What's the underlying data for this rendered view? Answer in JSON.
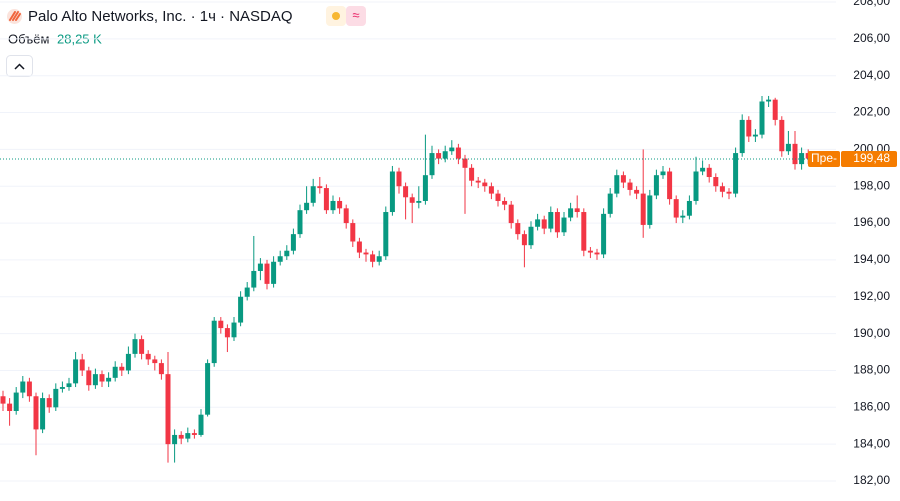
{
  "chart_data": {
    "type": "candlestick",
    "title": "Palo Alto Networks, Inc. · 1ч · NASDAQ",
    "volume_label": "Объём",
    "volume_value": "28,25 K",
    "up_color": "#089981",
    "down_color": "#f23645",
    "grid": true,
    "ylim": [
      182,
      208
    ],
    "yticks": [
      {
        "value": 182,
        "label": "182,00"
      },
      {
        "value": 184,
        "label": "184,00"
      },
      {
        "value": 186,
        "label": "186,00"
      },
      {
        "value": 188,
        "label": "188,00"
      },
      {
        "value": 190,
        "label": "190,00"
      },
      {
        "value": 192,
        "label": "192,00"
      },
      {
        "value": 194,
        "label": "194,00"
      },
      {
        "value": 196,
        "label": "196,00"
      },
      {
        "value": 198,
        "label": "198,00"
      },
      {
        "value": 200,
        "label": "200,00"
      },
      {
        "value": 202,
        "label": "202,00"
      },
      {
        "value": 204,
        "label": "204,00"
      },
      {
        "value": 206,
        "label": "206,00"
      },
      {
        "value": 208,
        "label": "208,00"
      }
    ],
    "premarket_label": "Пре-",
    "premarket_price": {
      "value": 199.48,
      "label": "199,48"
    },
    "open": [
      186.6,
      186.2,
      185.8,
      186.8,
      187.4,
      186.6,
      184.8,
      186.5,
      186.0,
      187.0,
      187.1,
      187.3,
      188.6,
      188.0,
      187.2,
      187.8,
      187.4,
      187.6,
      188.2,
      188.0,
      188.9,
      189.7,
      188.9,
      188.6,
      188.4,
      187.8,
      184.0,
      184.5,
      184.3,
      184.6,
      184.5,
      185.6,
      188.4,
      190.7,
      190.3,
      189.8,
      190.6,
      192.0,
      192.5,
      193.4,
      193.8,
      192.7,
      193.9,
      194.2,
      194.5,
      195.4,
      196.7,
      197.1,
      198.0,
      197.9,
      196.7,
      197.2,
      196.8,
      196.0,
      195.0,
      194.4,
      194.3,
      193.9,
      194.2,
      196.6,
      198.8,
      198.0,
      197.4,
      197.1,
      197.2,
      198.6,
      199.8,
      199.5,
      199.9,
      200.1,
      199.5,
      199.0,
      198.3,
      198.2,
      198.0,
      197.6,
      197.2,
      197.0,
      196.0,
      195.4,
      194.8,
      195.8,
      196.2,
      195.7,
      196.6,
      195.5,
      196.3,
      196.8,
      196.6,
      194.5,
      194.4,
      194.3,
      196.5,
      197.6,
      198.6,
      198.2,
      197.8,
      197.6,
      195.9,
      197.5,
      198.6,
      198.8,
      197.3,
      196.3,
      196.4,
      197.2,
      198.8,
      199.0,
      198.5,
      198.0,
      197.7,
      197.6,
      199.8,
      201.6,
      200.7,
      200.8,
      202.6,
      202.7,
      201.6,
      199.9,
      200.3,
      199.2,
      199.8
    ],
    "high": [
      186.9,
      186.5,
      187.1,
      187.7,
      187.6,
      186.8,
      186.8,
      186.7,
      187.3,
      187.4,
      187.6,
      189.0,
      188.9,
      188.2,
      188.1,
      188.0,
      187.9,
      188.5,
      188.4,
      189.3,
      190.0,
      189.9,
      189.1,
      188.8,
      188.6,
      189.0,
      184.8,
      184.7,
      184.9,
      184.8,
      185.9,
      188.6,
      190.9,
      190.9,
      190.5,
      190.9,
      192.3,
      192.8,
      195.3,
      194.1,
      194.0,
      194.2,
      194.5,
      194.8,
      195.7,
      197.0,
      198.0,
      198.4,
      198.5,
      198.1,
      197.5,
      197.4,
      197.0,
      196.2,
      195.2,
      194.6,
      194.5,
      194.5,
      196.9,
      199.1,
      199.0,
      198.2,
      197.6,
      198.0,
      200.8,
      200.2,
      200.0,
      200.2,
      200.5,
      200.3,
      199.7,
      199.2,
      198.5,
      198.4,
      198.2,
      197.8,
      197.4,
      197.2,
      196.2,
      195.6,
      196.1,
      196.5,
      196.4,
      196.9,
      196.8,
      196.6,
      197.1,
      197.5,
      196.8,
      194.7,
      194.6,
      196.8,
      197.9,
      198.9,
      198.8,
      198.4,
      198.0,
      200.0,
      197.8,
      198.9,
      199.1,
      199.0,
      197.5,
      196.7,
      197.5,
      199.6,
      199.4,
      199.2,
      198.7,
      198.2,
      197.9,
      200.1,
      201.9,
      201.8,
      201.1,
      202.9,
      202.9,
      202.8,
      201.8,
      201.0,
      201.0,
      200.1,
      200.0
    ],
    "low": [
      185.8,
      185.0,
      185.6,
      186.5,
      186.3,
      183.4,
      184.6,
      185.7,
      185.8,
      186.8,
      186.9,
      187.1,
      187.7,
      186.9,
      187.0,
      187.1,
      187.1,
      187.4,
      187.7,
      187.8,
      188.7,
      188.6,
      188.3,
      188.0,
      187.5,
      183.0,
      183.0,
      184.0,
      184.1,
      184.3,
      184.4,
      185.5,
      188.2,
      190.0,
      189.0,
      189.6,
      190.4,
      191.8,
      192.3,
      192.9,
      192.4,
      192.5,
      193.7,
      194.0,
      194.3,
      195.2,
      196.5,
      196.9,
      197.6,
      196.5,
      196.5,
      196.5,
      195.7,
      194.7,
      194.1,
      193.9,
      193.6,
      193.7,
      194.0,
      196.4,
      197.6,
      196.2,
      196.0,
      196.8,
      197.0,
      198.4,
      199.2,
      199.3,
      199.7,
      199.2,
      196.5,
      198.0,
      197.9,
      197.7,
      197.3,
      196.9,
      196.7,
      195.7,
      195.1,
      193.6,
      194.6,
      195.6,
      195.4,
      195.5,
      195.2,
      195.3,
      196.1,
      196.3,
      194.2,
      194.1,
      194.0,
      194.1,
      196.3,
      197.4,
      197.9,
      197.5,
      197.3,
      195.2,
      195.7,
      197.3,
      198.4,
      197.0,
      196.0,
      196.0,
      196.2,
      197.0,
      198.6,
      198.2,
      197.7,
      197.4,
      197.3,
      197.4,
      199.6,
      200.4,
      200.4,
      200.6,
      202.3,
      201.3,
      199.6,
      199.7,
      198.9,
      198.9,
      199.2
    ],
    "close": [
      186.2,
      185.8,
      186.8,
      187.4,
      186.6,
      184.8,
      186.5,
      186.0,
      187.0,
      187.1,
      187.3,
      188.6,
      188.0,
      187.2,
      187.8,
      187.4,
      187.6,
      188.2,
      188.0,
      188.9,
      189.7,
      188.9,
      188.6,
      188.4,
      187.8,
      184.0,
      184.5,
      184.3,
      184.6,
      184.5,
      185.6,
      188.4,
      190.7,
      190.3,
      189.8,
      190.6,
      192.0,
      192.5,
      193.4,
      193.8,
      192.7,
      193.9,
      194.2,
      194.5,
      195.4,
      196.7,
      197.1,
      198.0,
      197.9,
      196.7,
      197.2,
      196.8,
      196.0,
      195.0,
      194.4,
      194.3,
      193.9,
      194.2,
      196.6,
      198.8,
      198.0,
      197.4,
      197.1,
      197.2,
      198.6,
      199.8,
      199.5,
      199.9,
      200.1,
      199.5,
      199.0,
      198.3,
      198.2,
      198.0,
      197.6,
      197.2,
      197.0,
      196.0,
      195.4,
      194.8,
      195.8,
      196.2,
      195.7,
      196.6,
      195.5,
      196.3,
      196.8,
      196.6,
      194.5,
      194.4,
      194.3,
      196.5,
      197.6,
      198.6,
      198.2,
      197.8,
      197.6,
      195.9,
      197.5,
      198.6,
      198.8,
      197.3,
      196.3,
      196.4,
      197.2,
      198.8,
      199.0,
      198.5,
      198.0,
      197.7,
      197.6,
      199.8,
      201.6,
      200.7,
      200.8,
      202.6,
      202.7,
      201.6,
      199.9,
      200.3,
      199.2,
      199.8,
      199.5
    ]
  }
}
